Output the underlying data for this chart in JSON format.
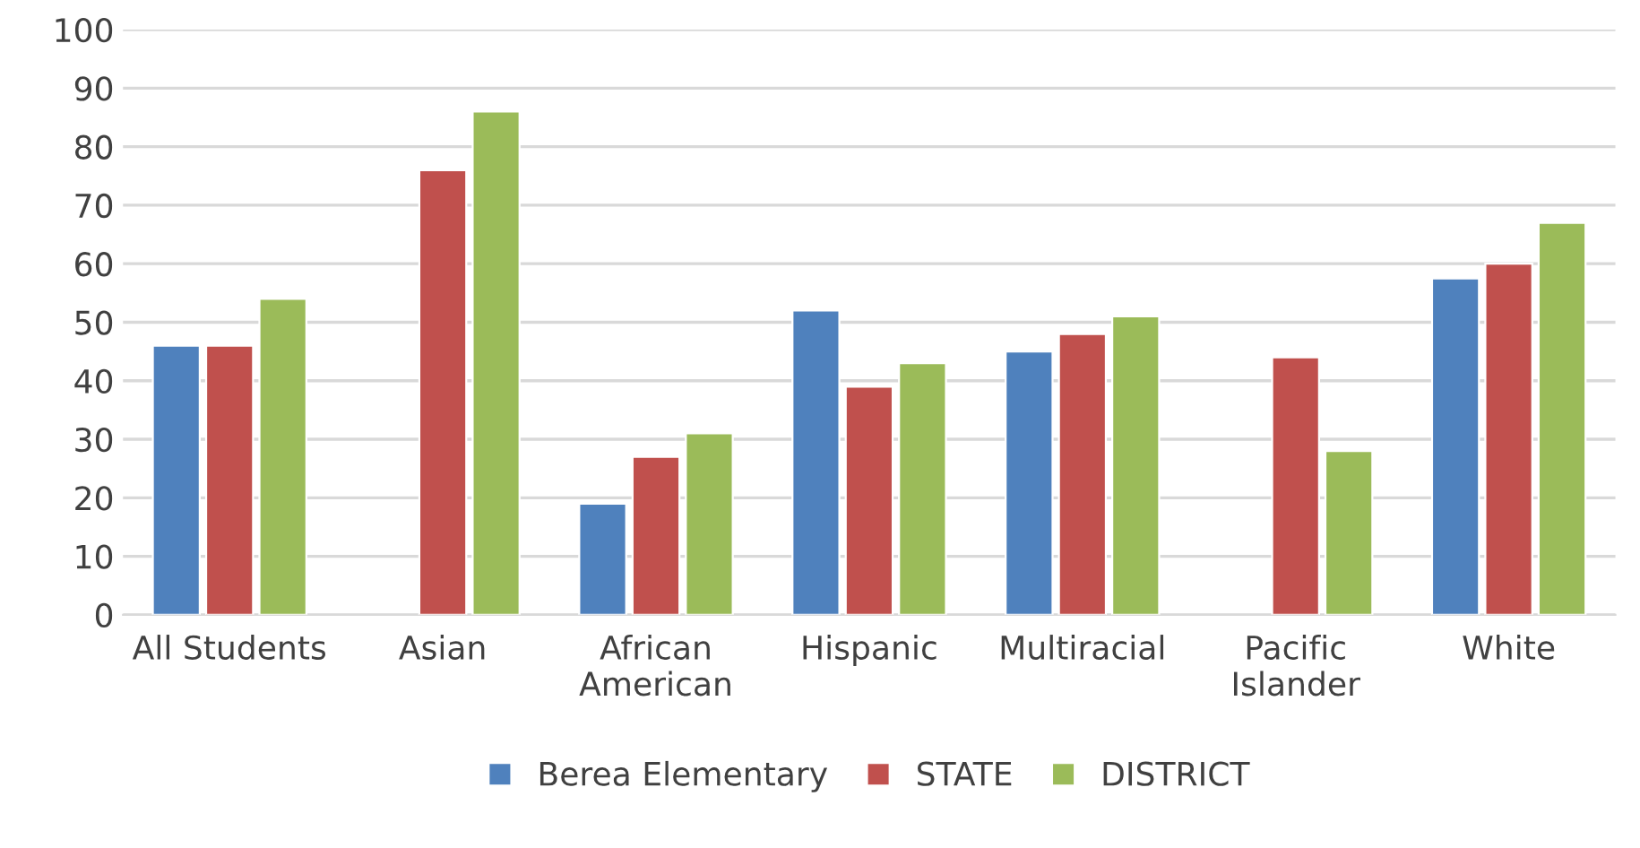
{
  "chart_data": {
    "type": "bar",
    "categories": [
      "All Students",
      "Asian",
      "African\nAmerican",
      "Hispanic",
      "Multiracial",
      "Pacific\nIslander",
      "White"
    ],
    "series": [
      {
        "name": "Berea Elementary",
        "color": "#4f81bd",
        "values": [
          46,
          null,
          19,
          52,
          45,
          null,
          57.5
        ]
      },
      {
        "name": "STATE",
        "color": "#c0504d",
        "values": [
          46,
          76,
          27,
          39,
          48,
          44,
          60
        ]
      },
      {
        "name": "DISTRICT",
        "color": "#9bbb59",
        "values": [
          54,
          86,
          31,
          43,
          51,
          28,
          67
        ]
      }
    ],
    "ylim": [
      0,
      100
    ],
    "yticks": [
      0,
      10,
      20,
      30,
      40,
      50,
      60,
      70,
      80,
      90,
      100
    ],
    "grid": "y",
    "legend": "bottom"
  }
}
